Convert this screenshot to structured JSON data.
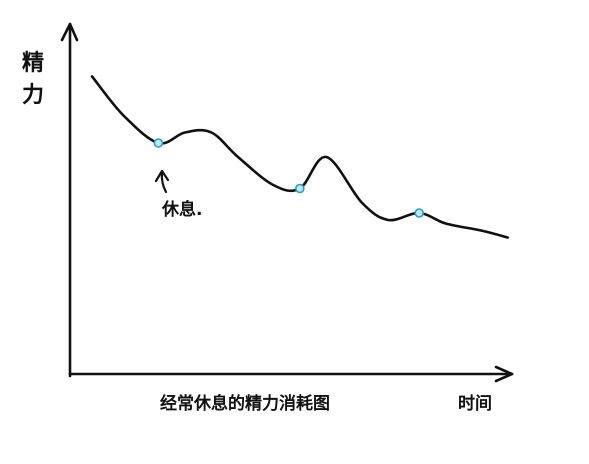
{
  "chart_data": {
    "type": "line",
    "title": "",
    "caption": "经常休息的精力消耗图",
    "xlabel": "时间",
    "ylabel": "精力",
    "x_range": [
      0,
      10
    ],
    "y_range": [
      0,
      10
    ],
    "grid": false,
    "legend": "none",
    "series": [
      {
        "x": [
          0.5,
          1.2,
          2.0,
          2.6,
          3.2,
          3.8,
          4.6,
          5.2,
          5.8,
          6.6,
          7.2,
          7.9,
          8.5,
          9.3,
          9.9
        ],
        "y": [
          8.5,
          7.4,
          6.6,
          6.9,
          6.9,
          6.2,
          5.4,
          5.3,
          6.2,
          4.9,
          4.4,
          4.6,
          4.3,
          4.1,
          3.9
        ]
      }
    ],
    "rest_points": [
      {
        "x": 2.0,
        "y": 6.6
      },
      {
        "x": 5.2,
        "y": 5.3
      },
      {
        "x": 7.9,
        "y": 4.6
      }
    ],
    "annotation": {
      "text": "休息.",
      "target_point": 0
    },
    "colors": {
      "line": "#111111",
      "marker": "#2a9fc4",
      "axis": "#111111"
    }
  }
}
